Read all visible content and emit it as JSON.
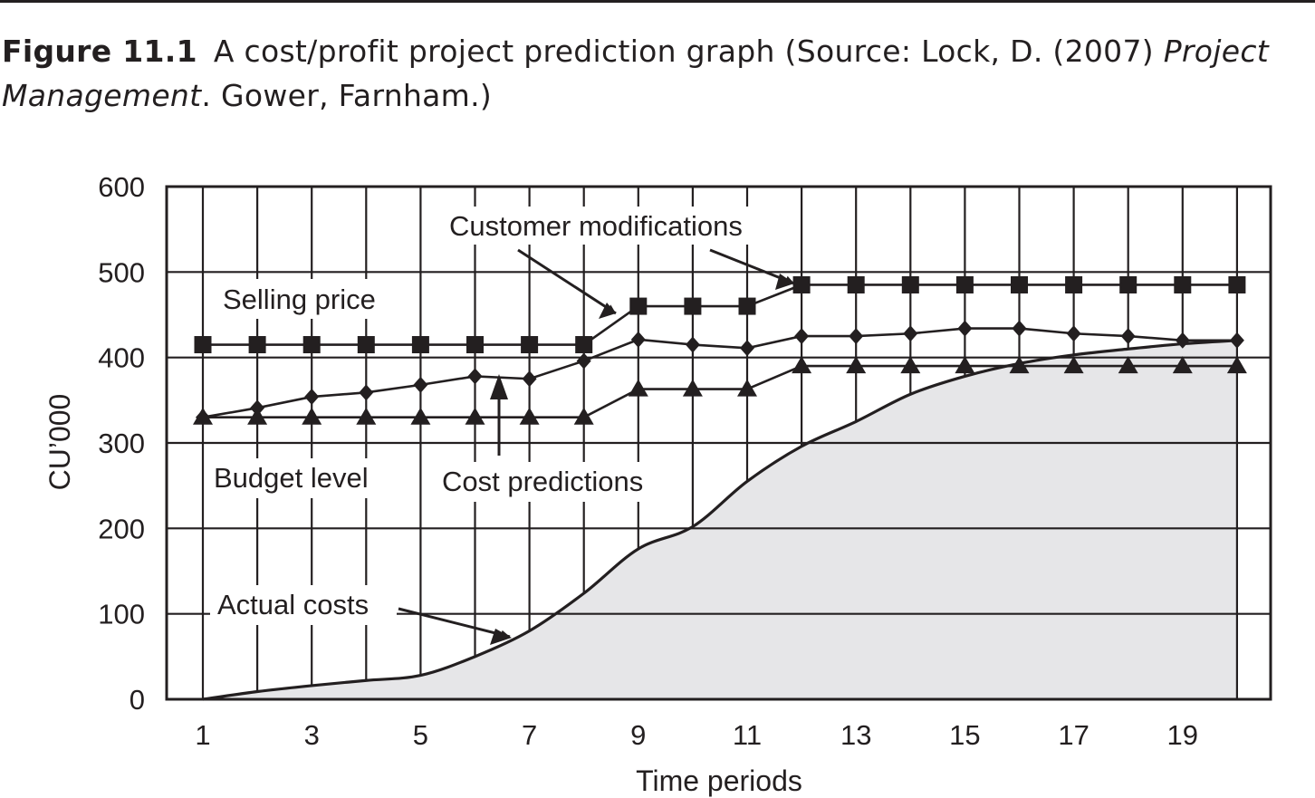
{
  "caption": {
    "label": "Figure 11.1",
    "text_1": "A cost/profit project prediction graph (Source: Lock, D. (2007) ",
    "italic_1": "Project Management",
    "text_2": ". Gower, Farnham.)"
  },
  "chart_data": {
    "type": "line",
    "title": "",
    "xlabel": "Time periods",
    "ylabel": "CU’000",
    "xlim": [
      1,
      20
    ],
    "ylim": [
      0,
      600
    ],
    "x_ticks": [
      1,
      3,
      5,
      7,
      9,
      11,
      13,
      15,
      17,
      19
    ],
    "y_ticks": [
      0,
      100,
      200,
      300,
      400,
      500,
      600
    ],
    "grid": true,
    "x": [
      1,
      2,
      3,
      4,
      5,
      6,
      7,
      8,
      9,
      10,
      11,
      12,
      13,
      14,
      15,
      16,
      17,
      18,
      19,
      20
    ],
    "series": [
      {
        "name": "Selling price",
        "marker": "square",
        "values": [
          415,
          415,
          415,
          415,
          415,
          415,
          415,
          415,
          460,
          460,
          460,
          485,
          485,
          485,
          485,
          485,
          485,
          485,
          485,
          485
        ]
      },
      {
        "name": "Cost predictions",
        "marker": "diamond",
        "values": [
          330,
          341,
          354,
          359,
          368,
          378,
          375,
          396,
          421,
          415,
          411,
          425,
          425,
          428,
          434,
          434,
          428,
          425,
          420,
          420
        ]
      },
      {
        "name": "Budget level",
        "marker": "triangle",
        "values": [
          330,
          330,
          330,
          330,
          330,
          330,
          330,
          330,
          363,
          363,
          363,
          390,
          390,
          390,
          390,
          390,
          390,
          390,
          390,
          390
        ]
      },
      {
        "name": "Actual costs",
        "marker": "none",
        "fill": "#e6e6e8",
        "x": [
          1,
          2,
          3,
          4,
          5,
          6,
          7,
          8,
          9,
          10,
          11,
          12,
          13,
          14,
          15,
          16,
          17,
          18,
          19,
          20
        ],
        "values": [
          0,
          9,
          16,
          22,
          28,
          50,
          80,
          124,
          176,
          202,
          255,
          296,
          325,
          357,
          378,
          393,
          403,
          410,
          416,
          420
        ]
      }
    ],
    "annotations": [
      {
        "text": "Customer modifications"
      },
      {
        "text": "Selling price"
      },
      {
        "text": "Budget level"
      },
      {
        "text": "Cost predictions"
      },
      {
        "text": "Actual costs"
      }
    ],
    "colors": {
      "ink": "#231f20",
      "area_fill": "#e6e6e8"
    }
  }
}
